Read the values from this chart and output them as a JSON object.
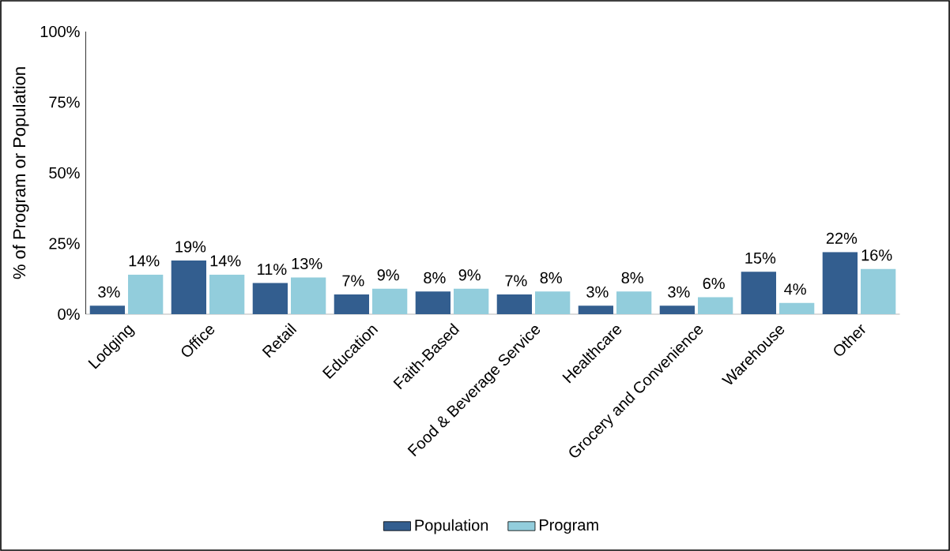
{
  "chart_data": {
    "type": "bar",
    "ylabel": "% of Program or Population",
    "categories": [
      "Lodging",
      "Office",
      "Retail",
      "Education",
      "Faith-Based",
      "Food & Beverage Service",
      "Healthcare",
      "Grocery and Convenience",
      "Warehouse",
      "Other"
    ],
    "series": [
      {
        "name": "Population",
        "color": "#335e8f",
        "values": [
          3,
          19,
          11,
          7,
          8,
          7,
          3,
          3,
          15,
          22
        ],
        "value_labels": [
          "3%",
          "19%",
          "11%",
          "7%",
          "8%",
          "7%",
          "3%",
          "3%",
          "15%",
          "22%"
        ]
      },
      {
        "name": "Program",
        "color": "#92cddc",
        "values": [
          14,
          14,
          13,
          9,
          9,
          8,
          8,
          6,
          4,
          16
        ],
        "value_labels": [
          "14%",
          "14%",
          "13%",
          "9%",
          "9%",
          "8%",
          "8%",
          "6%",
          "4%",
          "16%"
        ]
      }
    ],
    "ylim": [
      0,
      100
    ],
    "yticks": [
      {
        "value": 0,
        "label": "0%"
      },
      {
        "value": 25,
        "label": "25%"
      },
      {
        "value": 50,
        "label": "50%"
      },
      {
        "value": 75,
        "label": "75%"
      },
      {
        "value": 100,
        "label": "100%"
      }
    ],
    "grid": false,
    "legend": "bottom"
  }
}
